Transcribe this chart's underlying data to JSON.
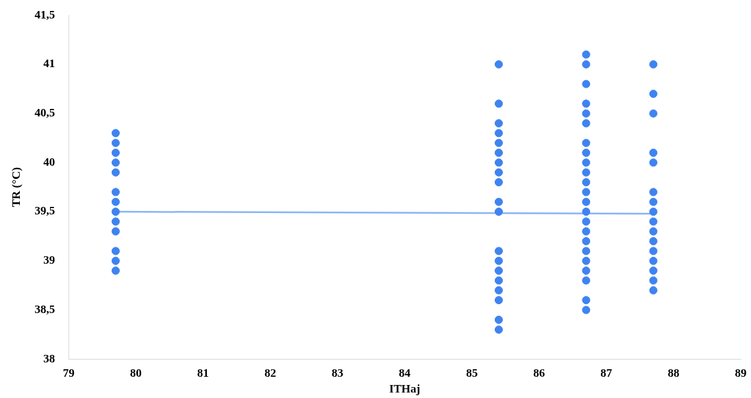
{
  "chart_data": {
    "type": "scatter",
    "xlabel": "ITHaj",
    "ylabel": "TR (°C)",
    "xlim": [
      79,
      89
    ],
    "ylim": [
      38,
      41.5
    ],
    "xticks": [
      79,
      80,
      81,
      82,
      83,
      84,
      85,
      86,
      87,
      88,
      89
    ],
    "yticks": [
      38,
      {
        "value": 38.5,
        "label": "38,5"
      },
      39,
      {
        "value": 39.5,
        "label": "39,5"
      },
      40,
      {
        "value": 40.5,
        "label": "40,5"
      },
      41,
      {
        "value": 41.5,
        "label": "41,5"
      }
    ],
    "grid": false,
    "legend": false,
    "series": [
      {
        "type": "scatter",
        "marker": "circle",
        "color": "#3f83f0",
        "x": [
          79.7,
          79.7,
          79.7,
          79.7,
          79.7,
          79.7,
          79.7,
          79.7,
          79.7,
          79.7,
          79.7,
          79.7,
          79.7,
          85.4,
          85.4,
          85.4,
          85.4,
          85.4,
          85.4,
          85.4,
          85.4,
          85.4,
          85.4,
          85.4,
          85.4,
          85.4,
          85.4,
          85.4,
          85.4,
          85.4,
          85.4,
          85.4,
          86.7,
          86.7,
          86.7,
          86.7,
          86.7,
          86.7,
          86.7,
          86.7,
          86.7,
          86.7,
          86.7,
          86.7,
          86.7,
          86.7,
          86.7,
          86.7,
          86.7,
          86.7,
          86.7,
          86.7,
          86.7,
          86.7,
          86.7,
          87.7,
          87.7,
          87.7,
          87.7,
          87.7,
          87.7,
          87.7,
          87.7,
          87.7,
          87.7,
          87.7,
          87.7,
          87.7,
          87.7,
          87.7,
          87.7
        ],
        "values": [
          40.3,
          40.2,
          40.1,
          40.0,
          39.9,
          39.7,
          39.6,
          39.5,
          39.4,
          39.3,
          39.1,
          39.0,
          38.9,
          41.0,
          40.6,
          40.4,
          40.3,
          40.2,
          40.1,
          40.0,
          39.9,
          39.8,
          39.6,
          39.5,
          39.1,
          39.0,
          38.9,
          38.8,
          38.7,
          38.6,
          38.4,
          38.3,
          41.1,
          41.0,
          40.8,
          40.6,
          40.5,
          40.4,
          40.2,
          40.1,
          40.0,
          39.9,
          39.8,
          39.7,
          39.6,
          39.5,
          39.4,
          39.3,
          39.2,
          39.1,
          39.0,
          38.9,
          38.8,
          38.6,
          38.5,
          41.0,
          40.7,
          40.5,
          40.1,
          40.0,
          39.7,
          39.6,
          39.5,
          39.4,
          39.3,
          39.2,
          39.1,
          39.0,
          38.9,
          38.8,
          38.7
        ]
      },
      {
        "type": "line",
        "marker": "none",
        "color": "#8ab4f8",
        "x": [
          79.7,
          87.7
        ],
        "values": [
          39.5,
          39.48
        ]
      }
    ]
  }
}
